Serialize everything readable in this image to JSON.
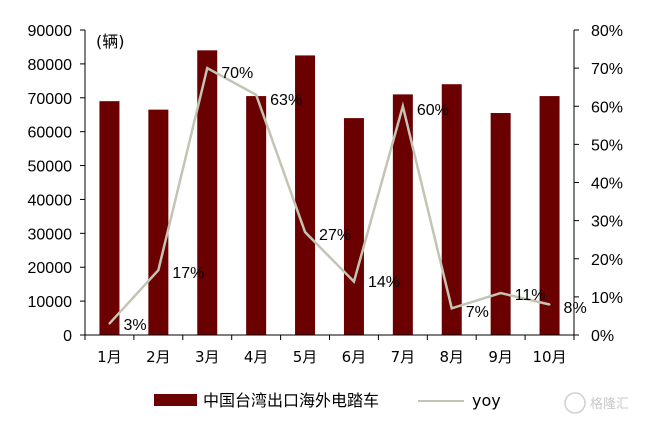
{
  "chart_data": {
    "type": "bar",
    "categories": [
      "1月",
      "2月",
      "3月",
      "4月",
      "5月",
      "6月",
      "7月",
      "8月",
      "9月",
      "10月"
    ],
    "series": [
      {
        "name": "中国台湾出口海外电踏车",
        "type": "bar",
        "axis": "left",
        "color": "#6b0000",
        "values": [
          69000,
          66500,
          84000,
          70500,
          82500,
          64000,
          71000,
          74000,
          65500,
          70500
        ]
      },
      {
        "name": "yoy",
        "type": "line",
        "axis": "right",
        "color": "#c4c4b4",
        "values": [
          0.03,
          0.17,
          0.7,
          0.63,
          0.27,
          0.14,
          0.6,
          0.07,
          0.11,
          0.08
        ],
        "labels": [
          "3%",
          "17%",
          "70%",
          "63%",
          "27%",
          "14%",
          "60%",
          "7%",
          "11%",
          "8%"
        ]
      }
    ],
    "ylabel": "(辆)",
    "ylim": [
      0,
      90000
    ],
    "yticks": [
      "0",
      "10000",
      "20000",
      "30000",
      "40000",
      "50000",
      "60000",
      "70000",
      "80000",
      "90000"
    ],
    "y2lim": [
      0,
      0.8
    ],
    "y2ticks": [
      "0%",
      "10%",
      "20%",
      "30%",
      "40%",
      "50%",
      "60%",
      "70%",
      "80%"
    ],
    "grid": false,
    "legend_position": "bottom"
  },
  "watermark": "格隆汇"
}
